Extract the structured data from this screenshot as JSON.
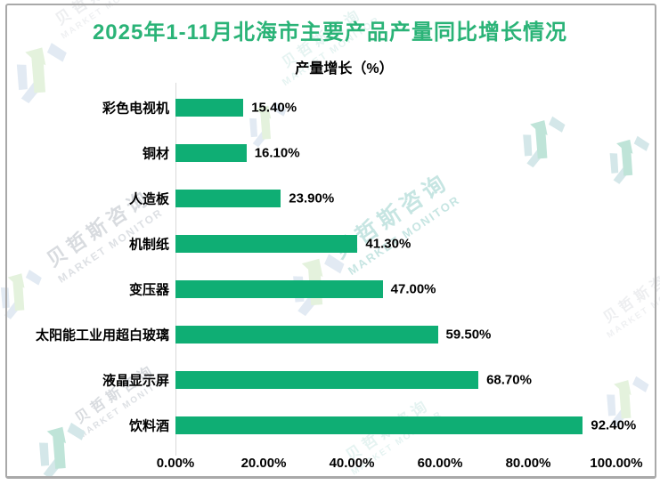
{
  "header": {
    "title": "2025年1-11月北海市主要产品产量同比增长情况",
    "title_color": "#2ab377"
  },
  "watermark": {
    "brand_cn": "贝哲斯咨询",
    "brand_en": "MARKET MONITOR"
  },
  "chart_data": {
    "type": "bar",
    "orientation": "horizontal",
    "title": "产量增长（%）",
    "categories": [
      "彩色电视机",
      "铜材",
      "人造板",
      "机制纸",
      "变压器",
      "太阳能工业用超白玻璃",
      "液晶显示屏",
      "饮料酒"
    ],
    "values": [
      15.4,
      16.1,
      23.9,
      41.3,
      47.0,
      59.5,
      68.7,
      92.4
    ],
    "value_labels": [
      "15.40%",
      "16.10%",
      "23.90%",
      "41.30%",
      "47.00%",
      "59.50%",
      "68.70%",
      "92.40%"
    ],
    "x_ticks": [
      0,
      20,
      40,
      60,
      80,
      100
    ],
    "x_tick_labels": [
      "0.00%",
      "20.00%",
      "40.00%",
      "60.00%",
      "80.00%",
      "100.00%"
    ],
    "xlim": [
      0,
      100
    ],
    "bar_color": "#0fae74",
    "axis_color": "#d9d9d9",
    "grid": false,
    "legend": "none",
    "data_labels": true
  }
}
